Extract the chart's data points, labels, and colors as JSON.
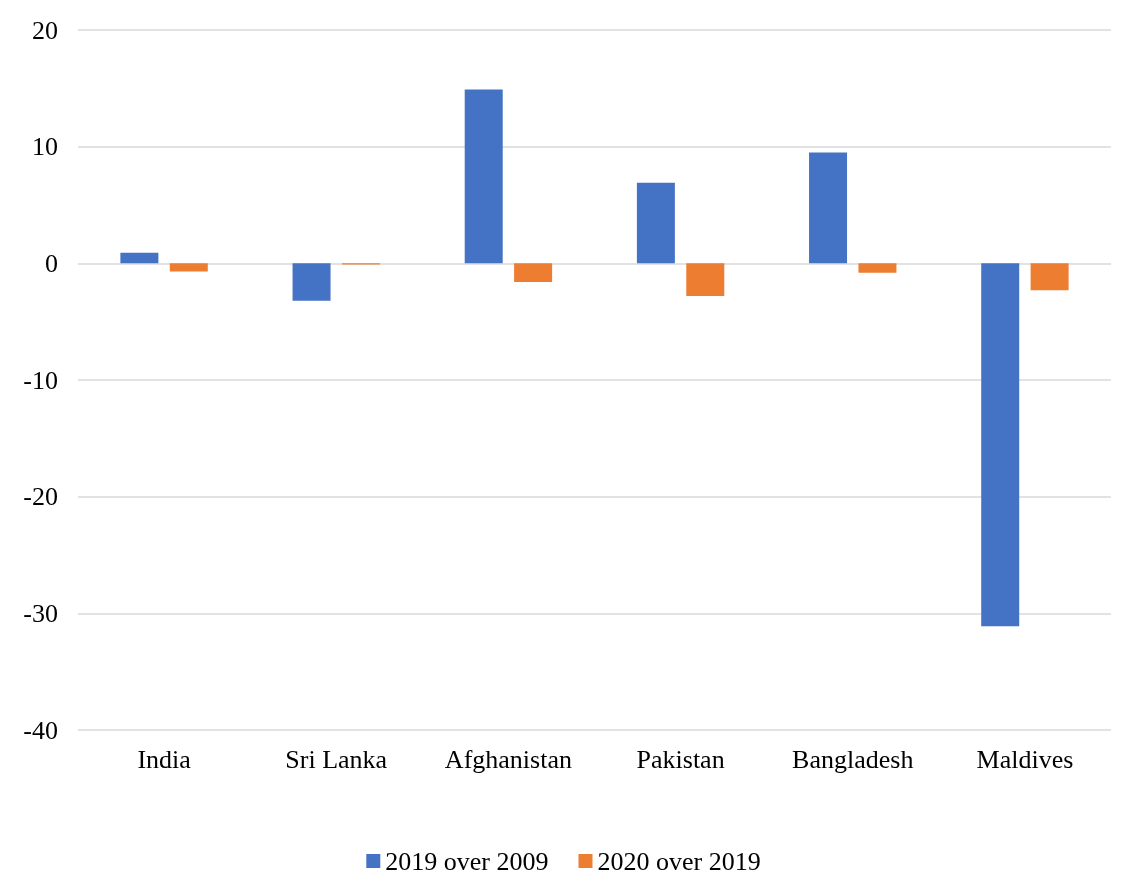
{
  "chart_data": {
    "type": "bar",
    "categories": [
      "India",
      "Sri Lanka",
      "Afghanistan",
      "Pakistan",
      "Bangladesh",
      "Maldives"
    ],
    "series": [
      {
        "name": "2019 over 2009",
        "color": "#4472c4",
        "values": [
          0.9,
          -3.2,
          14.9,
          6.9,
          9.5,
          -31.1
        ]
      },
      {
        "name": "2020 over 2019",
        "color": "#ed7d31",
        "values": [
          -0.7,
          -0.1,
          -1.6,
          -2.8,
          -0.8,
          -2.3
        ]
      }
    ],
    "ylim": [
      -40,
      20
    ],
    "yticks": [
      -40,
      -30,
      -20,
      -10,
      0,
      10,
      20
    ],
    "grid": "y",
    "legend": "bottom"
  }
}
